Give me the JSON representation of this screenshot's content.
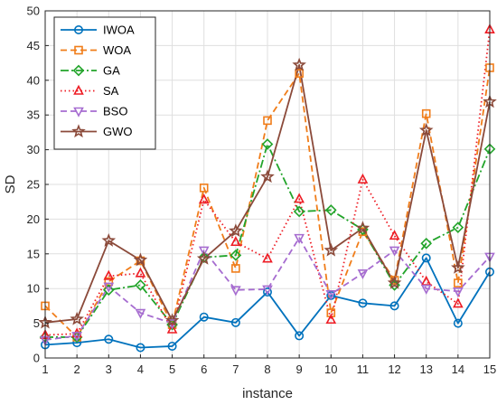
{
  "chart_data": {
    "type": "line",
    "title": "",
    "xlabel": "instance",
    "ylabel": "SD",
    "x": [
      1,
      2,
      3,
      4,
      5,
      6,
      7,
      8,
      9,
      10,
      11,
      12,
      13,
      14,
      15
    ],
    "xlim": [
      1,
      15
    ],
    "ylim": [
      0,
      50
    ],
    "yticks": [
      0,
      5,
      10,
      15,
      20,
      25,
      30,
      35,
      40,
      45,
      50
    ],
    "grid": true,
    "legend_position": "top-left",
    "series": [
      {
        "name": "IWOA",
        "color": "#0072BD",
        "linestyle": "solid",
        "marker": "circle",
        "values": [
          1.9,
          2.2,
          2.7,
          1.5,
          1.7,
          5.9,
          5.1,
          9.5,
          3.2,
          9.0,
          7.9,
          7.5,
          14.4,
          5.0,
          12.4
        ]
      },
      {
        "name": "WOA",
        "color": "#F07D1A",
        "linestyle": "dashed",
        "marker": "square",
        "values": [
          7.5,
          3.0,
          11.0,
          14.0,
          4.8,
          24.5,
          12.9,
          34.2,
          41.0,
          6.5,
          18.2,
          11.2,
          35.2,
          10.8,
          41.8
        ]
      },
      {
        "name": "GA",
        "color": "#22A42A",
        "linestyle": "dashdot",
        "marker": "diamond",
        "values": [
          3.0,
          3.0,
          9.8,
          10.5,
          4.8,
          14.5,
          14.8,
          30.8,
          21.1,
          21.3,
          18.5,
          10.5,
          16.5,
          18.8,
          30.1
        ]
      },
      {
        "name": "SA",
        "color": "#EE1C24",
        "linestyle": "dotted",
        "marker": "triangle-up",
        "values": [
          3.3,
          3.5,
          11.8,
          12.2,
          4.1,
          22.8,
          16.7,
          14.3,
          22.9,
          5.5,
          25.7,
          17.6,
          11.0,
          7.8,
          47.3
        ]
      },
      {
        "name": "BSO",
        "color": "#A66CD0",
        "linestyle": "dashed",
        "marker": "triangle-down",
        "values": [
          2.6,
          3.2,
          10.3,
          6.5,
          5.0,
          15.5,
          9.8,
          9.9,
          17.3,
          9.2,
          12.2,
          15.5,
          10.0,
          9.6,
          14.6
        ]
      },
      {
        "name": "GWO",
        "color": "#8B4A3A",
        "linestyle": "solid",
        "marker": "star",
        "values": [
          5.1,
          5.6,
          16.9,
          14.1,
          5.4,
          14.3,
          18.3,
          26.1,
          42.2,
          15.5,
          18.7,
          10.8,
          32.8,
          13.0,
          36.9
        ]
      }
    ]
  }
}
